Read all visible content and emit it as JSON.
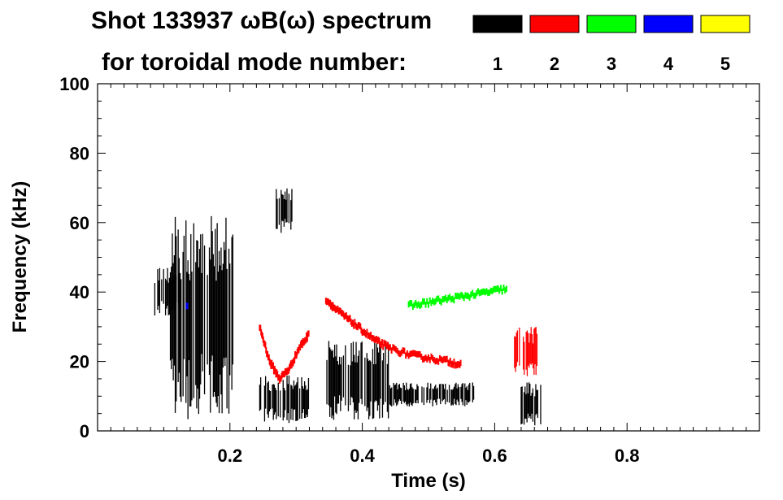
{
  "chart_data": {
    "type": "heatmap",
    "title_line1": "Shot 133937 ωB(ω) spectrum",
    "title_line2": "for toroidal mode number:",
    "xlabel": "Time (s)",
    "ylabel": "Frequency (kHz)",
    "xlim": [
      0.0,
      1.0
    ],
    "ylim": [
      0,
      100
    ],
    "xticks": [
      0.2,
      0.4,
      0.6,
      0.8
    ],
    "xtick_labels": [
      "0.2",
      "0.4",
      "0.6",
      "0.8"
    ],
    "yticks": [
      0,
      20,
      40,
      60,
      80,
      100
    ],
    "ytick_labels": [
      "0",
      "20",
      "40",
      "60",
      "80",
      "100"
    ],
    "grid": false,
    "legend": {
      "placement": "top-right",
      "entries": [
        {
          "label": "1",
          "color": "#000000"
        },
        {
          "label": "2",
          "color": "#ff0000"
        },
        {
          "label": "3",
          "color": "#00ff00"
        },
        {
          "label": "4",
          "color": "#0000ff"
        },
        {
          "label": "5",
          "color": "#ffff00"
        }
      ]
    },
    "series": [
      {
        "name": "1",
        "color": "#000000",
        "regions": [
          {
            "t": [
              0.085,
              0.125
            ],
            "f": [
              33,
              47
            ]
          },
          {
            "t": [
              0.11,
              0.205
            ],
            "f": [
              3,
              62
            ]
          },
          {
            "t": [
              0.245,
              0.32
            ],
            "f": [
              2,
              16
            ]
          },
          {
            "t": [
              0.27,
              0.295
            ],
            "f": [
              57,
              70
            ]
          },
          {
            "t": [
              0.345,
              0.44
            ],
            "f": [
              3,
              26
            ]
          },
          {
            "t": [
              0.44,
              0.57
            ],
            "f": [
              7,
              14
            ]
          },
          {
            "t": [
              0.64,
              0.67
            ],
            "f": [
              1,
              14
            ]
          }
        ]
      },
      {
        "name": "2",
        "color": "#ff0000",
        "curves": [
          {
            "t": [
              0.245,
              0.26,
              0.275,
              0.29,
              0.305,
              0.32
            ],
            "f": [
              30,
              20,
              15,
              18,
              24,
              28
            ]
          },
          {
            "t": [
              0.345,
              0.36,
              0.38,
              0.4,
              0.42,
              0.44,
              0.47,
              0.5,
              0.53,
              0.55
            ],
            "f": [
              38,
              35,
              32,
              29,
              26,
              24,
              22,
              21,
              20,
              19
            ]
          }
        ],
        "regions": [
          {
            "t": [
              0.63,
              0.665
            ],
            "f": [
              15,
              30
            ]
          }
        ]
      },
      {
        "name": "3",
        "color": "#00ff00",
        "curves": [
          {
            "t": [
              0.47,
              0.5,
              0.53,
              0.56,
              0.59,
              0.62
            ],
            "f": [
              36,
              37,
              38,
              39,
              40,
              41
            ]
          }
        ]
      },
      {
        "name": "4",
        "color": "#0000ff",
        "points": [
          {
            "t": 0.135,
            "f": 36
          }
        ]
      },
      {
        "name": "5",
        "color": "#ffff00",
        "points": []
      }
    ]
  }
}
